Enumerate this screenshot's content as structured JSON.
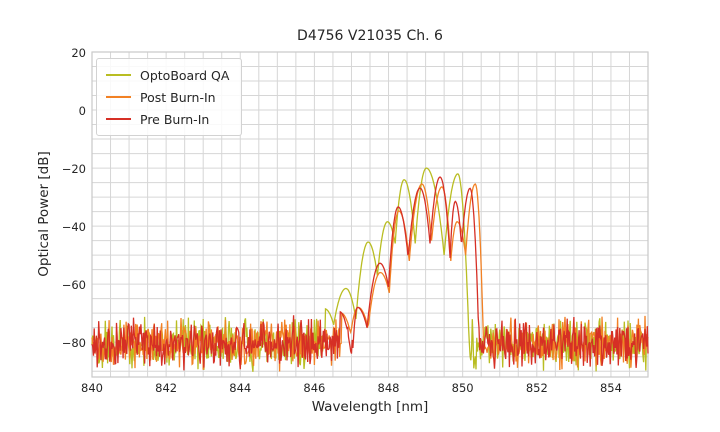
{
  "chart_data": {
    "type": "line",
    "title": "D4756 V21035 Ch. 6",
    "xlabel": "Wavelength [nm]",
    "ylabel": "Optical Power [dB]",
    "xlim": [
      840,
      855
    ],
    "ylim": [
      -92,
      20
    ],
    "xticks": [
      840,
      842,
      844,
      846,
      848,
      850,
      852,
      854
    ],
    "yticks": [
      20,
      0,
      -20,
      -40,
      -60,
      -80
    ],
    "grid": {
      "on": true,
      "x_step_nm": 0.5,
      "y_step_db": 5,
      "color": "#d6d6d6",
      "frame_color": "#c9c9c9"
    },
    "legend_position": "upper-left",
    "noise_floor": {
      "mean_db": -80.5,
      "spread_db": 10,
      "band_db": [
        -90.5,
        -70.5
      ]
    },
    "series": [
      {
        "name": "OptoBoard QA",
        "color": "#b9bd22",
        "seed": 7,
        "profile": [
          [
            846.28,
            -68.5,
            "peak"
          ],
          [
            846.52,
            -74.0,
            "valley"
          ],
          [
            846.85,
            -61.5,
            "peak"
          ],
          [
            847.12,
            -72.0,
            "valley"
          ],
          [
            847.45,
            -45.5,
            "peak"
          ],
          [
            847.7,
            -57.0,
            "valley"
          ],
          [
            847.97,
            -38.5,
            "peak"
          ],
          [
            848.18,
            -46.0,
            "valley"
          ],
          [
            848.42,
            -24.0,
            "peak"
          ],
          [
            848.72,
            -46.0,
            "valley"
          ],
          [
            849.02,
            -20.0,
            "peak"
          ],
          [
            849.5,
            -50.0,
            "valley"
          ],
          [
            849.87,
            -22.0,
            "peak"
          ],
          [
            850.16,
            -75.0,
            "valley"
          ]
        ]
      },
      {
        "name": "Post Burn-In",
        "color": "#f28124",
        "seed": 13,
        "profile": [
          [
            846.72,
            -70.0,
            "peak"
          ],
          [
            846.98,
            -77.0,
            "valley"
          ],
          [
            847.18,
            -68.0,
            "peak"
          ],
          [
            847.45,
            -75.0,
            "valley"
          ],
          [
            847.78,
            -56.0,
            "peak"
          ],
          [
            848.02,
            -63.0,
            "valley"
          ],
          [
            848.28,
            -34.8,
            "peak"
          ],
          [
            848.56,
            -52.0,
            "valley"
          ],
          [
            848.9,
            -25.5,
            "peak"
          ],
          [
            849.16,
            -45.0,
            "valley"
          ],
          [
            849.44,
            -26.5,
            "peak"
          ],
          [
            849.68,
            -52.0,
            "valley"
          ],
          [
            849.85,
            -38.5,
            "peak"
          ],
          [
            850.08,
            -50.0,
            "valley"
          ],
          [
            850.34,
            -25.5,
            "peak"
          ],
          [
            850.56,
            -80.0,
            "valley"
          ]
        ]
      },
      {
        "name": "Pre Burn-In",
        "color": "#d62f25",
        "seed": 21,
        "profile": [
          [
            846.68,
            -69.5,
            "peak"
          ],
          [
            847.02,
            -87.0,
            "valley"
          ],
          [
            847.16,
            -68.0,
            "peak"
          ],
          [
            847.42,
            -75.0,
            "valley"
          ],
          [
            847.77,
            -52.8,
            "peak"
          ],
          [
            848.0,
            -61.0,
            "valley"
          ],
          [
            848.26,
            -33.4,
            "peak"
          ],
          [
            848.53,
            -51.0,
            "valley"
          ],
          [
            848.85,
            -26.9,
            "peak"
          ],
          [
            849.12,
            -46.0,
            "valley"
          ],
          [
            849.39,
            -23.1,
            "peak"
          ],
          [
            849.66,
            -51.0,
            "valley"
          ],
          [
            849.8,
            -31.5,
            "peak"
          ],
          [
            849.97,
            -47.0,
            "valley"
          ],
          [
            850.2,
            -27.0,
            "peak"
          ],
          [
            850.44,
            -80.0,
            "valley"
          ]
        ]
      }
    ]
  }
}
